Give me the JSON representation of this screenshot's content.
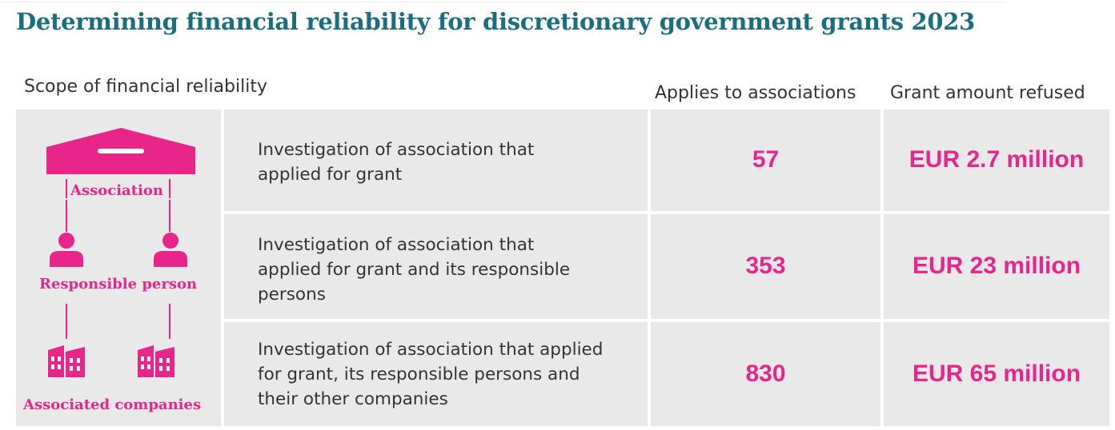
{
  "title": "Determining financial reliability for discretionary government grants 2023",
  "headers": {
    "scope": "Scope of financial reliability",
    "applies": "Applies to associations",
    "refused": "Grant amount refused"
  },
  "diagram": {
    "association": "Association",
    "responsible_person": "Responsible person",
    "associated_companies": "Associated companies"
  },
  "chart_data": {
    "type": "table",
    "title": "Determining financial reliability for discretionary government grants 2023",
    "columns": [
      "Scope of financial reliability",
      "Applies to associations",
      "Grant amount refused"
    ],
    "rows": [
      {
        "scope": "Investigation of association that applied for grant",
        "applies": "57",
        "refused": "EUR 2.7 million"
      },
      {
        "scope": "Investigation of association that applied for grant and its responsible persons",
        "applies": "353",
        "refused": "EUR 23 million"
      },
      {
        "scope": "Investigation of association that applied for grant, its responsible persons and their other companies",
        "applies": "830",
        "refused": "EUR 65 million"
      }
    ]
  },
  "colors": {
    "accent": "#e8268a",
    "title": "#1a6e80",
    "cell": "#e9e9e9"
  },
  "icons": [
    "building-icon",
    "person-icon",
    "factory-icon"
  ]
}
